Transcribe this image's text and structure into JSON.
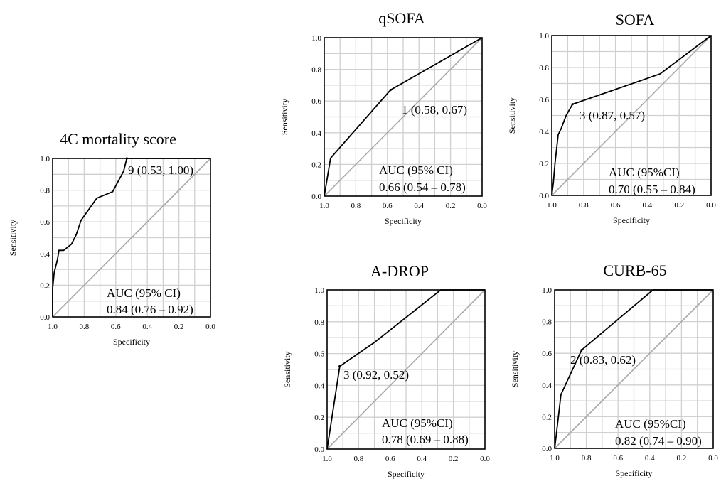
{
  "chart_data": [
    {
      "type": "line",
      "title": "4C mortality score",
      "xlabel": "Specificity",
      "ylabel": "Sensitivity",
      "x_reversed": true,
      "xlim": [
        1.0,
        0.0
      ],
      "ylim": [
        0.0,
        1.0
      ],
      "xticks": [
        "1.0",
        "0.8",
        "0.6",
        "0.4",
        "0.2",
        "0.0"
      ],
      "yticks": [
        "0.0",
        "0.2",
        "0.4",
        "0.6",
        "0.8",
        "1.0"
      ],
      "grid": true,
      "reference_line": "diagonal",
      "series": [
        {
          "specificity": [
            1.0,
            1.0,
            0.99,
            0.97,
            0.96,
            0.93,
            0.88,
            0.85,
            0.82,
            0.72,
            0.62,
            0.55,
            0.53,
            0.5,
            0.0
          ],
          "sensitivity": [
            0.0,
            0.18,
            0.28,
            0.36,
            0.42,
            0.42,
            0.46,
            0.52,
            0.61,
            0.75,
            0.79,
            0.92,
            1.0,
            1.0,
            1.0
          ]
        }
      ],
      "threshold_point": {
        "specificity": 0.53,
        "sensitivity": 1.0,
        "label": "9 (0.53, 1.00)"
      },
      "auc_label": "AUC (95% CI)",
      "auc_value": "0.84 (0.76 – 0.92)"
    },
    {
      "type": "line",
      "title": "qSOFA",
      "xlabel": "Specificity",
      "ylabel": "Sensitivity",
      "x_reversed": true,
      "xlim": [
        1.0,
        0.0
      ],
      "ylim": [
        0.0,
        1.0
      ],
      "xticks": [
        "1.0",
        "0.8",
        "0.6",
        "0.4",
        "0.2",
        "0.0"
      ],
      "yticks": [
        "0.0",
        "0.2",
        "0.4",
        "0.6",
        "0.8",
        "1.0"
      ],
      "grid": true,
      "reference_line": "diagonal",
      "series": [
        {
          "specificity": [
            1.0,
            0.96,
            0.58,
            0.0
          ],
          "sensitivity": [
            0.0,
            0.24,
            0.67,
            1.0
          ]
        }
      ],
      "threshold_point": {
        "specificity": 0.58,
        "sensitivity": 0.67,
        "label": "1 (0.58, 0.67)"
      },
      "auc_label": "AUC (95% CI)",
      "auc_value": "0.66 (0.54 – 0.78)"
    },
    {
      "type": "line",
      "title": "SOFA",
      "xlabel": "Specificity",
      "ylabel": "Sensitivity",
      "x_reversed": true,
      "xlim": [
        1.0,
        0.0
      ],
      "ylim": [
        0.0,
        1.0
      ],
      "xticks": [
        "1.0",
        "0.8",
        "0.6",
        "0.4",
        "0.2",
        "0.0"
      ],
      "yticks": [
        "0.0",
        "0.2",
        "0.4",
        "0.6",
        "0.8",
        "1.0"
      ],
      "grid": true,
      "reference_line": "diagonal",
      "series": [
        {
          "specificity": [
            1.0,
            0.99,
            0.98,
            0.96,
            0.94,
            0.91,
            0.87,
            0.32,
            0.0
          ],
          "sensitivity": [
            0.0,
            0.08,
            0.2,
            0.38,
            0.42,
            0.5,
            0.57,
            0.76,
            1.0
          ]
        }
      ],
      "threshold_point": {
        "specificity": 0.87,
        "sensitivity": 0.57,
        "label": "3 (0.87, 0.57)"
      },
      "auc_label": "AUC (95%CI)",
      "auc_value": "0.70 (0.55 – 0.84)"
    },
    {
      "type": "line",
      "title": "A-DROP",
      "xlabel": "Specificity",
      "ylabel": "Sensitivity",
      "x_reversed": true,
      "xlim": [
        1.0,
        0.0
      ],
      "ylim": [
        0.0,
        1.0
      ],
      "xticks": [
        "1.0",
        "0.8",
        "0.6",
        "0.4",
        "0.2",
        "0.0"
      ],
      "yticks": [
        "0.0",
        "0.2",
        "0.4",
        "0.6",
        "0.8",
        "1.0"
      ],
      "grid": true,
      "reference_line": "diagonal",
      "series": [
        {
          "specificity": [
            1.0,
            0.92,
            0.7,
            0.28,
            0.0
          ],
          "sensitivity": [
            0.0,
            0.52,
            0.67,
            1.0,
            1.0
          ]
        }
      ],
      "threshold_point": {
        "specificity": 0.92,
        "sensitivity": 0.52,
        "label": "3 (0.92, 0.52)"
      },
      "auc_label": "AUC (95%CI)",
      "auc_value": "0.78 (0.69 – 0.88)"
    },
    {
      "type": "line",
      "title": "CURB-65",
      "xlabel": "Specificity",
      "ylabel": "Sensitivity",
      "x_reversed": true,
      "xlim": [
        1.0,
        0.0
      ],
      "ylim": [
        0.0,
        1.0
      ],
      "xticks": [
        "1.0",
        "0.8",
        "0.6",
        "0.4",
        "0.2",
        "0.0"
      ],
      "yticks": [
        "0.0",
        "0.2",
        "0.4",
        "0.6",
        "0.8",
        "1.0"
      ],
      "grid": true,
      "reference_line": "diagonal",
      "series": [
        {
          "specificity": [
            1.0,
            0.99,
            0.96,
            0.83,
            0.38,
            0.0
          ],
          "sensitivity": [
            0.0,
            0.08,
            0.34,
            0.62,
            1.0,
            1.0
          ]
        }
      ],
      "threshold_point": {
        "specificity": 0.83,
        "sensitivity": 0.62,
        "label": "2 (0.83, 0.62)"
      },
      "auc_label": "AUC (95%CI)",
      "auc_value": "0.82 (0.74 – 0.90)"
    }
  ]
}
